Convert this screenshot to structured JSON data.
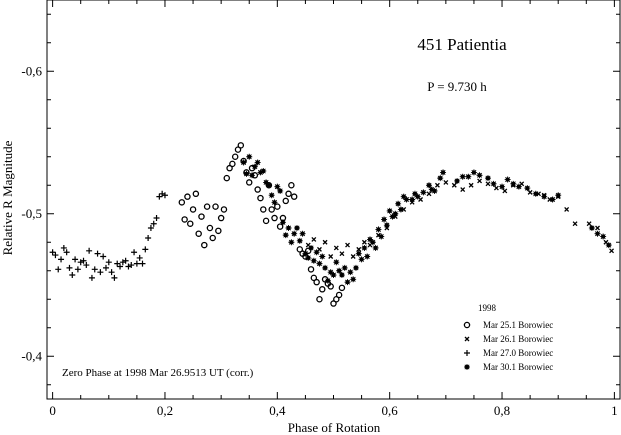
{
  "chart_data": {
    "type": "scatter",
    "title": "451 Patientia",
    "subtitle": "P = 9.730 h",
    "xlabel": "Phase of Rotation",
    "ylabel": "Relative R Magnitude",
    "xlim": [
      -0.01,
      1.01
    ],
    "ylim": [
      -0.65,
      -0.37
    ],
    "y_inverted": true,
    "grid": false,
    "x_ticks": [
      "0",
      "0,2",
      "0,4",
      "0,6",
      "0,8",
      "1"
    ],
    "x_tick_values": [
      0,
      0.2,
      0.4,
      0.6,
      0.8,
      1.0
    ],
    "y_ticks": [
      "-0,6",
      "-0,5",
      "-0,4"
    ],
    "y_tick_values": [
      -0.6,
      -0.5,
      -0.4
    ],
    "annotation": "Zero Phase at 1998 Mar 26.9513 UT (corr.)",
    "legend_title": "1998",
    "legend_position": "bottom-right",
    "series": [
      {
        "name": "Mar 25.1 Borowiec",
        "marker": "circle",
        "points": [
          [
            0.23,
            -0.508
          ],
          [
            0.235,
            -0.496
          ],
          [
            0.24,
            -0.512
          ],
          [
            0.245,
            -0.493
          ],
          [
            0.25,
            -0.503
          ],
          [
            0.255,
            -0.514
          ],
          [
            0.26,
            -0.486
          ],
          [
            0.265,
            -0.498
          ],
          [
            0.27,
            -0.478
          ],
          [
            0.275,
            -0.505
          ],
          [
            0.28,
            -0.49
          ],
          [
            0.285,
            -0.483
          ],
          [
            0.29,
            -0.505
          ],
          [
            0.295,
            -0.488
          ],
          [
            0.3,
            -0.497
          ],
          [
            0.305,
            -0.503
          ],
          [
            0.31,
            -0.525
          ],
          [
            0.315,
            -0.532
          ],
          [
            0.32,
            -0.535
          ],
          [
            0.325,
            -0.54
          ],
          [
            0.33,
            -0.545
          ],
          [
            0.335,
            -0.548
          ],
          [
            0.34,
            -0.537
          ],
          [
            0.345,
            -0.529
          ],
          [
            0.35,
            -0.522
          ],
          [
            0.355,
            -0.532
          ],
          [
            0.36,
            -0.527
          ],
          [
            0.365,
            -0.517
          ],
          [
            0.37,
            -0.511
          ],
          [
            0.375,
            -0.503
          ],
          [
            0.38,
            -0.495
          ],
          [
            0.385,
            -0.52
          ],
          [
            0.39,
            -0.503
          ],
          [
            0.395,
            -0.497
          ],
          [
            0.4,
            -0.505
          ],
          [
            0.405,
            -0.491
          ],
          [
            0.41,
            -0.497
          ],
          [
            0.415,
            -0.509
          ],
          [
            0.42,
            -0.514
          ],
          [
            0.425,
            -0.52
          ],
          [
            0.43,
            -0.512
          ],
          [
            0.44,
            -0.475
          ],
          [
            0.445,
            -0.472
          ],
          [
            0.45,
            -0.47
          ],
          [
            0.455,
            -0.474
          ],
          [
            0.46,
            -0.461
          ],
          [
            0.465,
            -0.455
          ],
          [
            0.47,
            -0.452
          ],
          [
            0.475,
            -0.44
          ],
          [
            0.48,
            -0.447
          ],
          [
            0.485,
            -0.454
          ],
          [
            0.49,
            -0.451
          ],
          [
            0.495,
            -0.449
          ],
          [
            0.5,
            -0.437
          ],
          [
            0.505,
            -0.44
          ],
          [
            0.51,
            -0.443
          ],
          [
            0.515,
            -0.448
          ]
        ]
      },
      {
        "name": "Mar 26.1 Borowiec",
        "marker": "x",
        "points": [
          [
            0.455,
            -0.478
          ],
          [
            0.465,
            -0.482
          ],
          [
            0.475,
            -0.475
          ],
          [
            0.485,
            -0.48
          ],
          [
            0.495,
            -0.47
          ],
          [
            0.505,
            -0.476
          ],
          [
            0.515,
            -0.472
          ],
          [
            0.525,
            -0.478
          ],
          [
            0.535,
            -0.47
          ],
          [
            0.545,
            -0.475
          ],
          [
            0.555,
            -0.48
          ],
          [
            0.565,
            -0.478
          ],
          [
            0.58,
            -0.485
          ],
          [
            0.595,
            -0.49
          ],
          [
            0.61,
            -0.498
          ],
          [
            0.625,
            -0.503
          ],
          [
            0.64,
            -0.508
          ],
          [
            0.655,
            -0.51
          ],
          [
            0.67,
            -0.514
          ],
          [
            0.685,
            -0.52
          ],
          [
            0.7,
            -0.522
          ],
          [
            0.715,
            -0.52
          ],
          [
            0.73,
            -0.517
          ],
          [
            0.745,
            -0.52
          ],
          [
            0.76,
            -0.523
          ],
          [
            0.775,
            -0.521
          ],
          [
            0.79,
            -0.518
          ],
          [
            0.805,
            -0.516
          ],
          [
            0.82,
            -0.52
          ],
          [
            0.835,
            -0.521
          ],
          [
            0.85,
            -0.515
          ],
          [
            0.865,
            -0.514
          ],
          [
            0.875,
            -0.513
          ],
          [
            0.885,
            -0.51
          ],
          [
            0.9,
            -0.512
          ],
          [
            0.915,
            -0.503
          ],
          [
            0.93,
            -0.493
          ],
          [
            0.955,
            -0.493
          ],
          [
            0.97,
            -0.49
          ],
          [
            0.985,
            -0.48
          ],
          [
            0.995,
            -0.474
          ]
        ]
      },
      {
        "name": "Mar 27.0 Borowiec",
        "marker": "plus",
        "points": [
          [
            0.0,
            -0.473
          ],
          [
            0.005,
            -0.471
          ],
          [
            0.01,
            -0.461
          ],
          [
            0.015,
            -0.468
          ],
          [
            0.02,
            -0.476
          ],
          [
            0.025,
            -0.473
          ],
          [
            0.03,
            -0.462
          ],
          [
            0.035,
            -0.457
          ],
          [
            0.04,
            -0.468
          ],
          [
            0.045,
            -0.461
          ],
          [
            0.05,
            -0.466
          ],
          [
            0.055,
            -0.467
          ],
          [
            0.06,
            -0.464
          ],
          [
            0.065,
            -0.474
          ],
          [
            0.07,
            -0.455
          ],
          [
            0.075,
            -0.461
          ],
          [
            0.08,
            -0.472
          ],
          [
            0.085,
            -0.459
          ],
          [
            0.09,
            -0.47
          ],
          [
            0.095,
            -0.462
          ],
          [
            0.1,
            -0.466
          ],
          [
            0.105,
            -0.459
          ],
          [
            0.11,
            -0.455
          ],
          [
            0.115,
            -0.465
          ],
          [
            0.12,
            -0.463
          ],
          [
            0.125,
            -0.466
          ],
          [
            0.13,
            -0.467
          ],
          [
            0.135,
            -0.463
          ],
          [
            0.14,
            -0.464
          ],
          [
            0.145,
            -0.473
          ],
          [
            0.15,
            -0.465
          ],
          [
            0.155,
            -0.469
          ],
          [
            0.16,
            -0.465
          ],
          [
            0.165,
            -0.475
          ],
          [
            0.17,
            -0.483
          ],
          [
            0.175,
            -0.49
          ],
          [
            0.18,
            -0.493
          ],
          [
            0.185,
            -0.497
          ],
          [
            0.19,
            -0.512
          ],
          [
            0.195,
            -0.514
          ],
          [
            0.2,
            -0.513
          ]
        ]
      },
      {
        "name": "Mar 30.1 Borowiec",
        "marker": "star",
        "points": [
          [
            0.34,
            -0.536
          ],
          [
            0.345,
            -0.528
          ],
          [
            0.35,
            -0.54
          ],
          [
            0.355,
            -0.527
          ],
          [
            0.36,
            -0.533
          ],
          [
            0.365,
            -0.536
          ],
          [
            0.37,
            -0.529
          ],
          [
            0.375,
            -0.53
          ],
          [
            0.38,
            -0.522
          ],
          [
            0.385,
            -0.52
          ],
          [
            0.39,
            -0.513
          ],
          [
            0.395,
            -0.508
          ],
          [
            0.4,
            -0.519
          ],
          [
            0.405,
            -0.516
          ],
          [
            0.41,
            -0.494
          ],
          [
            0.415,
            -0.485
          ],
          [
            0.42,
            -0.49
          ],
          [
            0.425,
            -0.48
          ],
          [
            0.43,
            -0.486
          ],
          [
            0.435,
            -0.49
          ],
          [
            0.44,
            -0.481
          ],
          [
            0.445,
            -0.486
          ],
          [
            0.45,
            -0.472
          ],
          [
            0.455,
            -0.469
          ],
          [
            0.46,
            -0.476
          ],
          [
            0.465,
            -0.467
          ],
          [
            0.47,
            -0.473
          ],
          [
            0.475,
            -0.465
          ],
          [
            0.48,
            -0.47
          ],
          [
            0.485,
            -0.462
          ],
          [
            0.49,
            -0.453
          ],
          [
            0.495,
            -0.459
          ],
          [
            0.5,
            -0.457
          ],
          [
            0.505,
            -0.466
          ],
          [
            0.51,
            -0.46
          ],
          [
            0.515,
            -0.457
          ],
          [
            0.52,
            -0.462
          ],
          [
            0.525,
            -0.452
          ],
          [
            0.53,
            -0.459
          ],
          [
            0.535,
            -0.454
          ],
          [
            0.54,
            -0.462
          ],
          [
            0.545,
            -0.472
          ],
          [
            0.55,
            -0.468
          ],
          [
            0.555,
            -0.476
          ],
          [
            0.56,
            -0.47
          ],
          [
            0.565,
            -0.482
          ],
          [
            0.57,
            -0.48
          ],
          [
            0.575,
            -0.476
          ],
          [
            0.58,
            -0.489
          ],
          [
            0.585,
            -0.484
          ],
          [
            0.59,
            -0.496
          ],
          [
            0.595,
            -0.492
          ],
          [
            0.6,
            -0.502
          ],
          [
            0.605,
            -0.498
          ],
          [
            0.61,
            -0.5
          ],
          [
            0.615,
            -0.507
          ],
          [
            0.62,
            -0.503
          ],
          [
            0.625,
            -0.512
          ],
          [
            0.63,
            -0.51
          ],
          [
            0.64,
            -0.51
          ],
          [
            0.645,
            -0.514
          ],
          [
            0.65,
            -0.512
          ],
          [
            0.66,
            -0.515
          ],
          [
            0.67,
            -0.52
          ],
          [
            0.675,
            -0.517
          ],
          [
            0.68,
            -0.516
          ],
          [
            0.69,
            -0.525
          ],
          [
            0.695,
            -0.529
          ],
          [
            0.72,
            -0.523
          ],
          [
            0.73,
            -0.526
          ],
          [
            0.74,
            -0.526
          ],
          [
            0.75,
            -0.529
          ],
          [
            0.76,
            -0.527
          ],
          [
            0.775,
            -0.525
          ],
          [
            0.785,
            -0.521
          ],
          [
            0.8,
            -0.519
          ],
          [
            0.81,
            -0.524
          ],
          [
            0.82,
            -0.521
          ],
          [
            0.83,
            -0.519
          ],
          [
            0.845,
            -0.518
          ],
          [
            0.86,
            -0.514
          ],
          [
            0.875,
            -0.512
          ],
          [
            0.89,
            -0.51
          ],
          [
            0.9,
            -0.513
          ],
          [
            0.96,
            -0.49
          ],
          [
            0.97,
            -0.486
          ],
          [
            0.98,
            -0.484
          ],
          [
            0.99,
            -0.478
          ]
        ]
      }
    ]
  }
}
